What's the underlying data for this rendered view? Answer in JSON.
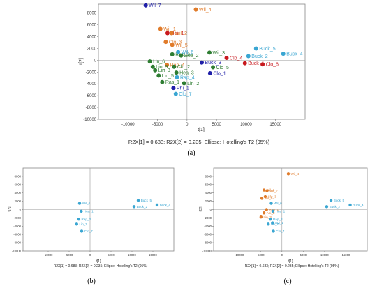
{
  "colors": {
    "orange": "#E07B2A",
    "red": "#C8191E",
    "green": "#2E7D32",
    "darkblue": "#1F1FA8",
    "lightblue": "#3AA6D2"
  },
  "chart_data": [
    {
      "type": "scatter",
      "panel": "(a)",
      "xlabel": "t[1]",
      "ylabel": "t[2]",
      "caption": "R2X[1] = 0.683; R2X[2] = 0.235; Ellipse: Hotelling's T2 (95%)",
      "xlim": [
        -15000,
        20000
      ],
      "ylim": [
        -10000,
        9500
      ],
      "xticks": [
        -10000,
        -5000,
        0,
        5000,
        10000,
        15000
      ],
      "yticks": [
        -10000,
        -8000,
        -6000,
        -4000,
        -2000,
        0,
        2000,
        4000,
        6000,
        8000
      ],
      "points": [
        {
          "label": "Wil_7",
          "x": -7000,
          "y": 9300,
          "color": "darkblue"
        },
        {
          "label": "Wil_4",
          "x": 1500,
          "y": 8600,
          "color": "orange"
        },
        {
          "label": "Wil_1",
          "x": -4500,
          "y": 5300,
          "color": "orange"
        },
        {
          "label": "Hor_1",
          "x": -3300,
          "y": 4600,
          "color": "red"
        },
        {
          "label": "Wil_2",
          "x": -2600,
          "y": 4600,
          "color": "orange"
        },
        {
          "label": "Clo_3",
          "x": -3600,
          "y": 3100,
          "color": "orange"
        },
        {
          "label": "Wil_5",
          "x": -2500,
          "y": 2600,
          "color": "orange"
        },
        {
          "label": "Wil_3",
          "x": 3800,
          "y": 1300,
          "color": "green"
        },
        {
          "label": "Buck_5",
          "x": 11700,
          "y": 2000,
          "color": "lightblue"
        },
        {
          "label": "Buck_4",
          "x": 16300,
          "y": 1100,
          "color": "lightblue"
        },
        {
          "label": "Rap_2",
          "x": -2500,
          "y": 1000,
          "color": "green"
        },
        {
          "label": "Wil_6",
          "x": -1500,
          "y": 1400,
          "color": "lightblue"
        },
        {
          "label": "Hea_2",
          "x": -1000,
          "y": 800,
          "color": "green"
        },
        {
          "label": "Buck_2",
          "x": 10400,
          "y": 700,
          "color": "lightblue"
        },
        {
          "label": "Clo_4",
          "x": 6700,
          "y": 400,
          "color": "red"
        },
        {
          "label": "Lin_6",
          "x": -6300,
          "y": -200,
          "color": "green"
        },
        {
          "label": "Rap_4",
          "x": -3400,
          "y": -800,
          "color": "orange"
        },
        {
          "label": "Buck_3",
          "x": 2500,
          "y": -400,
          "color": "darkblue"
        },
        {
          "label": "Buck_1",
          "x": 9800,
          "y": -500,
          "color": "red"
        },
        {
          "label": "Clo_6",
          "x": 12800,
          "y": -700,
          "color": "red"
        },
        {
          "label": "Lin_9",
          "x": -5800,
          "y": -1100,
          "color": "green"
        },
        {
          "label": "Clo_2",
          "x": -2200,
          "y": -1100,
          "color": "green"
        },
        {
          "label": "Clo_5",
          "x": 4400,
          "y": -1200,
          "color": "green"
        },
        {
          "label": "Lin_3",
          "x": -5400,
          "y": -1700,
          "color": "green"
        },
        {
          "label": "Hea_3",
          "x": -1800,
          "y": -2100,
          "color": "green"
        },
        {
          "label": "Clo_1",
          "x": 3900,
          "y": -2200,
          "color": "darkblue"
        },
        {
          "label": "Lin_5",
          "x": -4800,
          "y": -2600,
          "color": "green"
        },
        {
          "label": "Rap_4",
          "x": -1700,
          "y": -2900,
          "color": "lightblue"
        },
        {
          "label": "Ras_1",
          "x": -4200,
          "y": -3700,
          "color": "green"
        },
        {
          "label": "Lin_2",
          "x": -500,
          "y": -3900,
          "color": "green"
        },
        {
          "label": "Phi_1",
          "x": -2300,
          "y": -4700,
          "color": "darkblue"
        },
        {
          "label": "Clo_7",
          "x": -1900,
          "y": -5700,
          "color": "lightblue"
        }
      ]
    },
    {
      "type": "scatter",
      "panel": "(b)",
      "xlabel": "t[1]",
      "ylabel": "t[2]",
      "caption": "R2X[1] = 0.683; R2X[2] = 0.235; Ellipse: Hotelling's T2 (95%)",
      "xlim": [
        -16000,
        20000
      ],
      "ylim": [
        -10000,
        10000
      ],
      "xticks": [
        -10000,
        -5000,
        0,
        5000,
        10000,
        15000
      ],
      "yticks": [
        -10000,
        -8000,
        -6000,
        -4000,
        -2000,
        0,
        2000,
        4000,
        6000,
        8000
      ],
      "points": [
        {
          "label": "Wil_6",
          "x": -2500,
          "y": 1500,
          "color": "lightblue"
        },
        {
          "label": "Buck_5",
          "x": 11500,
          "y": 2200,
          "color": "lightblue"
        },
        {
          "label": "Buck_2",
          "x": 10500,
          "y": 700,
          "color": "lightblue"
        },
        {
          "label": "Buck_4",
          "x": 16000,
          "y": 1100,
          "color": "lightblue"
        },
        {
          "label": "Hea_1",
          "x": -2100,
          "y": -400,
          "color": "lightblue"
        },
        {
          "label": "Rap_3",
          "x": -2700,
          "y": -2300,
          "color": "lightblue"
        },
        {
          "label": "Lin_7",
          "x": -3200,
          "y": -3500,
          "color": "lightblue"
        },
        {
          "label": "Clo_7",
          "x": -2000,
          "y": -5200,
          "color": "lightblue"
        }
      ]
    },
    {
      "type": "scatter",
      "panel": "(c)",
      "xlabel": "t[1]",
      "ylabel": "t[2]",
      "caption": "R2X[1] = 0.683; R2X[2] = 0.235; Ellipse: Hotelling's T2 (95%)",
      "xlim": [
        -16000,
        20000
      ],
      "ylim": [
        -10000,
        10000
      ],
      "xticks": [
        -10000,
        -5000,
        0,
        5000,
        10000,
        15000
      ],
      "yticks": [
        -10000,
        -8000,
        -6000,
        -4000,
        -2000,
        0,
        2000,
        4000,
        6000,
        8000
      ],
      "points": [
        {
          "label": "Wil_4",
          "x": 1500,
          "y": 8600,
          "color": "orange"
        },
        {
          "label": "Wil_1",
          "x": -4200,
          "y": 4700,
          "color": "orange"
        },
        {
          "label": "Wil_2",
          "x": -3500,
          "y": 4500,
          "color": "orange"
        },
        {
          "label": "Clo_3",
          "x": -3900,
          "y": 3100,
          "color": "orange"
        },
        {
          "label": "Wil_5",
          "x": -4700,
          "y": 2700,
          "color": "orange"
        },
        {
          "label": "Wil_6",
          "x": -2500,
          "y": 1500,
          "color": "lightblue"
        },
        {
          "label": "Buck_5",
          "x": 11500,
          "y": 2200,
          "color": "lightblue"
        },
        {
          "label": "Buck_2",
          "x": 10500,
          "y": 700,
          "color": "lightblue"
        },
        {
          "label": "Buck_4",
          "x": 16000,
          "y": 1100,
          "color": "lightblue"
        },
        {
          "label": "Rap_1",
          "x": -3600,
          "y": 0,
          "color": "orange"
        },
        {
          "label": "Hea_1",
          "x": -2100,
          "y": -400,
          "color": "lightblue"
        },
        {
          "label": "Api_2",
          "x": -4200,
          "y": -800,
          "color": "orange"
        },
        {
          "label": "Lin_3",
          "x": -4900,
          "y": -1800,
          "color": "orange"
        },
        {
          "label": "Rap_3",
          "x": -2700,
          "y": -2300,
          "color": "lightblue"
        },
        {
          "label": "Api_1",
          "x": -2200,
          "y": -3200,
          "color": "lightblue"
        },
        {
          "label": "Lin_7",
          "x": -3200,
          "y": -3500,
          "color": "lightblue"
        },
        {
          "label": "Clo_7",
          "x": -2000,
          "y": -5200,
          "color": "lightblue"
        }
      ]
    }
  ]
}
